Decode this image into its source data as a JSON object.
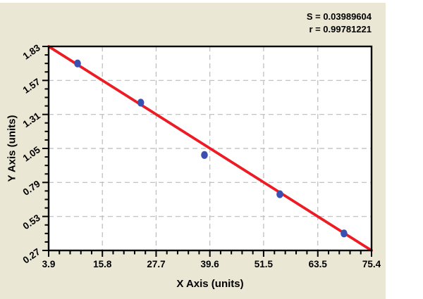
{
  "window": {
    "background": "#FFFFFF",
    "panel_background": "#EAE8D5"
  },
  "chart_data": {
    "type": "scatter",
    "title": "",
    "xlabel": "X Axis (units)",
    "ylabel": "Y Axis (units)",
    "annotations": {
      "s_label": "S = 0.03989604",
      "r_label": "r = 0.99781221"
    },
    "xlim": [
      3.9,
      75.4
    ],
    "ylim": [
      0.27,
      1.83
    ],
    "x_tick_labels": [
      "3.9",
      "15.8",
      "27.7",
      "39.6",
      "51.5",
      "63.5",
      "75.4"
    ],
    "y_tick_labels": [
      "0.27",
      "0.53",
      "0.79",
      "1.05",
      "1.31",
      "1.57",
      "1.83"
    ],
    "x_minor_ticks_per_interval": 4,
    "y_minor_ticks_per_interval": 3,
    "grid": "dashed-major",
    "legend": "none",
    "series": [
      {
        "name": "data-points",
        "type": "scatter",
        "points": [
          {
            "x": 10.3,
            "y": 1.7
          },
          {
            "x": 24.3,
            "y": 1.4
          },
          {
            "x": 38.4,
            "y": 1.0
          },
          {
            "x": 55.1,
            "y": 0.7
          },
          {
            "x": 69.3,
            "y": 0.4
          }
        ]
      },
      {
        "name": "regression-line",
        "type": "line",
        "points": [
          {
            "x": 3.9,
            "y": 1.83
          },
          {
            "x": 75.4,
            "y": 0.27
          }
        ]
      }
    ],
    "colors": {
      "regression_line": "#ED1C24",
      "data_point": "#3A50B0",
      "grid_line": "#BBBBBB",
      "axis": "#000000",
      "plot_background": "#FFFFFF"
    }
  }
}
